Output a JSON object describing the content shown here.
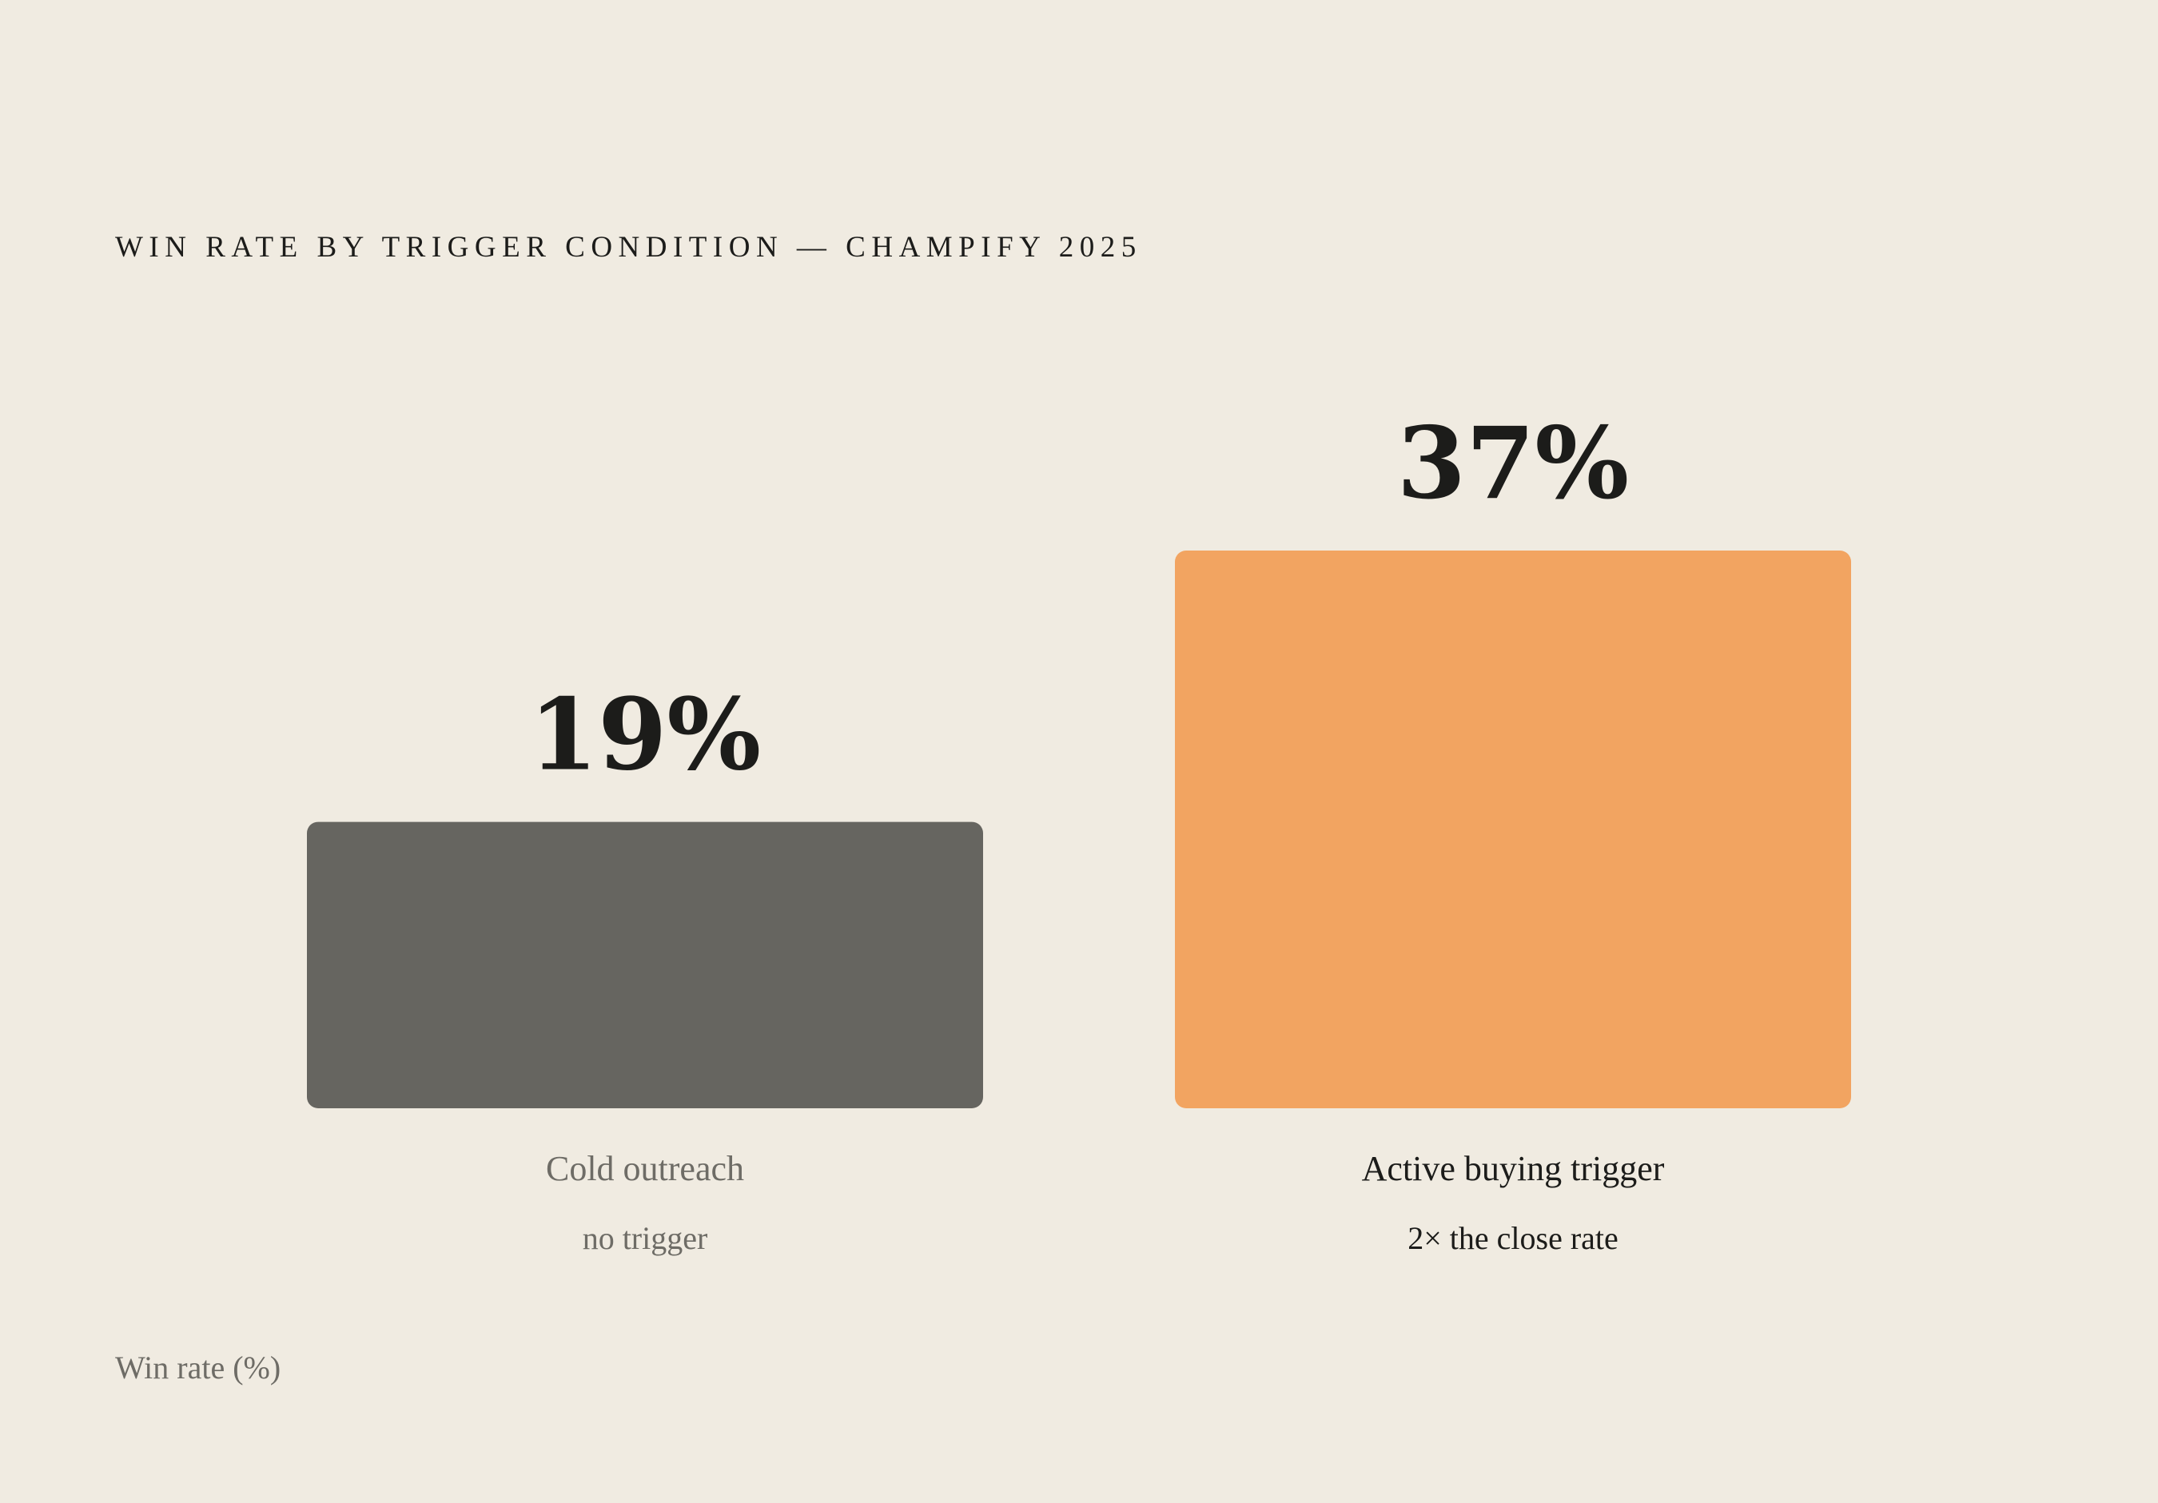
{
  "chart_data": {
    "type": "bar",
    "title": "WIN RATE BY TRIGGER CONDITION — CHAMPIFY 2025",
    "ylabel": "Win rate (%)",
    "categories": [
      "Cold outreach",
      "Active buying trigger"
    ],
    "subtitles": [
      "no trigger",
      "2× the close rate"
    ],
    "values": [
      19,
      37
    ],
    "value_labels": [
      "19%",
      "37%"
    ],
    "colors": [
      "#666560",
      "#f2a461"
    ],
    "label_colors": [
      "#6e6c66",
      "#1c1c1a"
    ],
    "ylim": [
      0,
      37
    ],
    "grid": false,
    "legend": "none"
  }
}
